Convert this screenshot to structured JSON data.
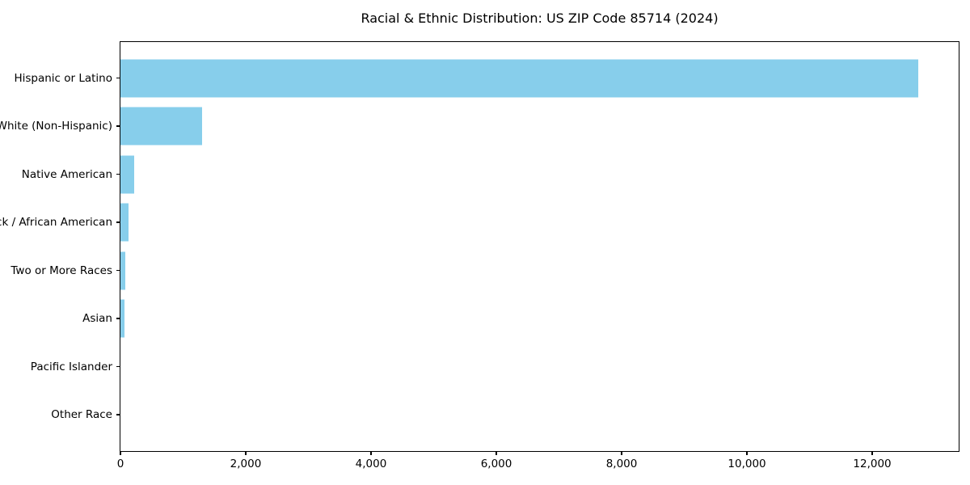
{
  "chart_data": {
    "type": "bar",
    "orientation": "horizontal",
    "title": "Racial & Ethnic Distribution: US ZIP Code 85714 (2024)",
    "categories": [
      "Hispanic or Latino",
      "White (Non-Hispanic)",
      "Native American",
      "Black / African American",
      "Two or More Races",
      "Asian",
      "Pacific Islander",
      "Other Race"
    ],
    "values": [
      12730,
      1300,
      225,
      130,
      80,
      70,
      0,
      0
    ],
    "xlabel": "",
    "ylabel": "",
    "xlim": [
      0,
      13380
    ],
    "xticks": [
      0,
      2000,
      4000,
      6000,
      8000,
      10000,
      12000
    ],
    "xtick_labels": [
      "0",
      "2,000",
      "4,000",
      "6,000",
      "8,000",
      "10,000",
      "12,000"
    ],
    "grid": false,
    "legend_position": "none",
    "bar_color": "#87CEEB",
    "background_color": "#ffffff",
    "text_color": "#000000",
    "spine_color": "#000000"
  }
}
